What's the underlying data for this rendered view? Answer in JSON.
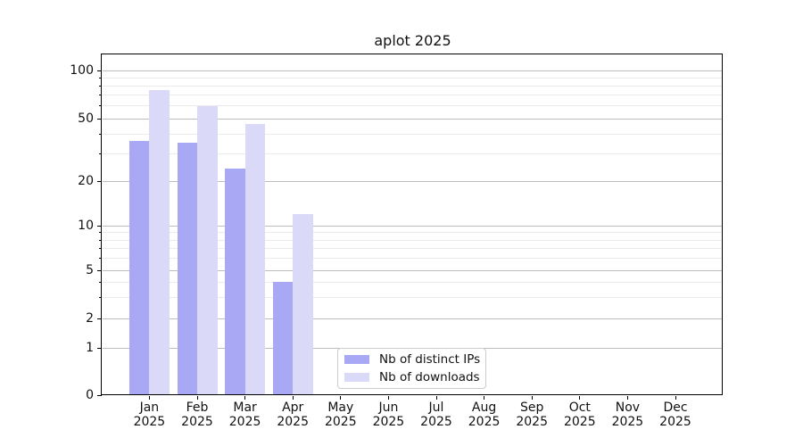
{
  "title": "aplot 2025",
  "chart_data": {
    "type": "bar",
    "title": "aplot 2025",
    "x_categories": [
      "Jan",
      "Feb",
      "Mar",
      "Apr",
      "May",
      "Jun",
      "Jul",
      "Aug",
      "Sep",
      "Oct",
      "Nov",
      "Dec"
    ],
    "x_year_label": "2025",
    "series": [
      {
        "name": "Nb of distinct IPs",
        "color": "#a8a8f4",
        "values": [
          36,
          35,
          24,
          4,
          0,
          0,
          0,
          0,
          0,
          0,
          0,
          0
        ]
      },
      {
        "name": "Nb of downloads",
        "color": "#dadaf8",
        "values": [
          75,
          60,
          46,
          12,
          0,
          0,
          0,
          0,
          0,
          0,
          0,
          0
        ]
      }
    ],
    "xlabel": "",
    "ylabel": "",
    "yscale": "symlog",
    "ylim": [
      0,
      128
    ],
    "yticks": [
      0,
      1,
      2,
      5,
      10,
      20,
      50,
      100
    ],
    "yticks_minor": [
      3,
      4,
      6,
      7,
      8,
      9,
      30,
      40,
      60,
      70,
      80,
      90
    ],
    "grid": {
      "axis": "y",
      "major": true,
      "minor": true
    },
    "legend": {
      "position": "lower center",
      "labels": [
        "Nb of distinct IPs",
        "Nb of downloads"
      ]
    }
  },
  "colors": {
    "bar_distinct_ips": "#a8a8f4",
    "bar_downloads": "#dadaf8",
    "grid_major": "#bcbcbc",
    "grid_minor": "#eaeaea",
    "spine": "#000000",
    "text": "#111111",
    "legend_border": "#cccccc",
    "background": "#ffffff"
  }
}
